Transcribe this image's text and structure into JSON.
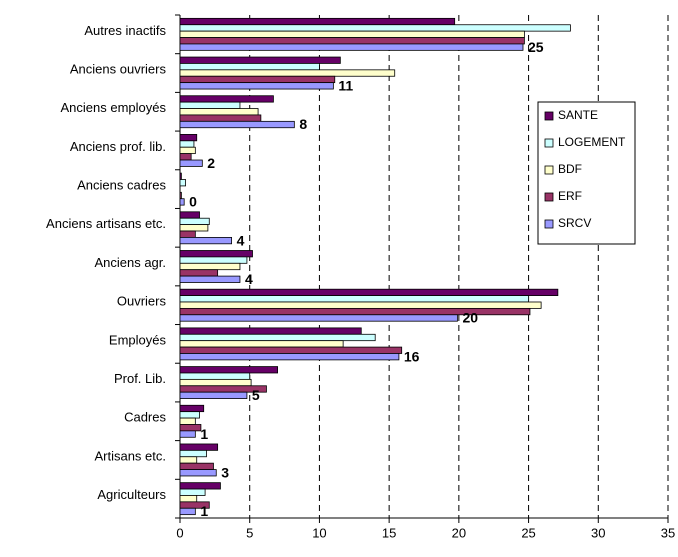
{
  "chart_data": {
    "type": "bar",
    "orientation": "horizontal",
    "categories": [
      "Autres inactifs",
      "Anciens ouvriers",
      "Anciens employés",
      "Anciens prof. lib.",
      "Anciens cadres",
      "Anciens artisans etc.",
      "Anciens agr.",
      "Ouvriers",
      "Employés",
      "Prof. Lib.",
      "Cadres",
      "Artisans etc.",
      "Agriculteurs"
    ],
    "series": [
      {
        "name": "SANTE",
        "color": "#660066",
        "values": [
          19.7,
          11.5,
          6.7,
          1.2,
          0.1,
          1.4,
          5.2,
          27.1,
          13.0,
          7.0,
          1.7,
          2.7,
          2.9
        ]
      },
      {
        "name": "LOGEMENT",
        "color": "#ccffff",
        "values": [
          28.0,
          10.0,
          4.3,
          1.0,
          0.4,
          2.1,
          4.8,
          25.0,
          14.0,
          5.0,
          1.4,
          1.9,
          1.8
        ]
      },
      {
        "name": "BDF",
        "color": "#ffffcc",
        "values": [
          24.7,
          15.4,
          5.6,
          1.1,
          0,
          2.0,
          4.3,
          25.9,
          11.7,
          5.1,
          1.1,
          1.2,
          1.2
        ]
      },
      {
        "name": "ERF",
        "color": "#993366",
        "values": [
          24.7,
          11.1,
          5.8,
          0.8,
          0.1,
          1.1,
          2.7,
          25.1,
          15.9,
          6.2,
          1.5,
          2.4,
          2.1
        ]
      },
      {
        "name": "SRCV",
        "color": "#9999ff",
        "values": [
          24.6,
          11.0,
          8.2,
          1.6,
          0.3,
          3.7,
          4.3,
          19.9,
          15.7,
          4.8,
          1.1,
          2.6,
          1.1
        ],
        "value_labels": [
          "25",
          "11",
          "8",
          "2",
          "0",
          "4",
          "4",
          "20",
          "16",
          "5",
          "1",
          "3",
          "1"
        ]
      }
    ],
    "xlim": [
      0,
      35
    ],
    "xticks": [
      0,
      5,
      10,
      15,
      20,
      25,
      30,
      35
    ],
    "grid": true,
    "legend": "right"
  }
}
